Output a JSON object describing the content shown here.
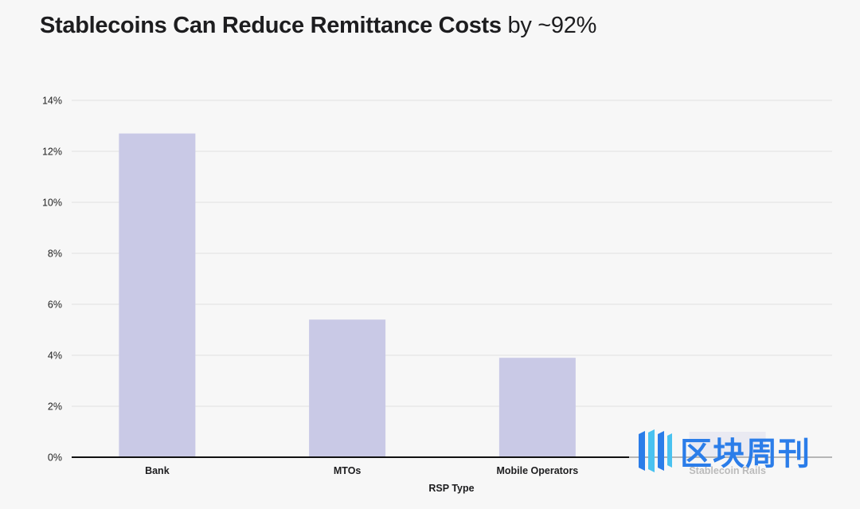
{
  "title": {
    "main": "Stablecoins Can Reduce Remittance Costs",
    "suffix": "by ~92%"
  },
  "chart_data": {
    "type": "bar",
    "categories": [
      "Bank",
      "MTOs",
      "Mobile Operators",
      "Stablecoin Rails"
    ],
    "values": [
      12.7,
      5.4,
      3.9,
      1.0
    ],
    "xlabel": "RSP Type",
    "ylabel": "",
    "ylim": [
      0,
      14
    ],
    "yticks": [
      0,
      2,
      4,
      6,
      8,
      10,
      12,
      14
    ],
    "ytick_labels": [
      "0%",
      "2%",
      "4%",
      "6%",
      "8%",
      "10%",
      "12%",
      "14%"
    ],
    "grid": true,
    "bar_color": "#c9c9e6"
  },
  "watermark": {
    "text": "区块周刊",
    "icon": "bar-logo-icon",
    "color": "#2b7de9"
  }
}
